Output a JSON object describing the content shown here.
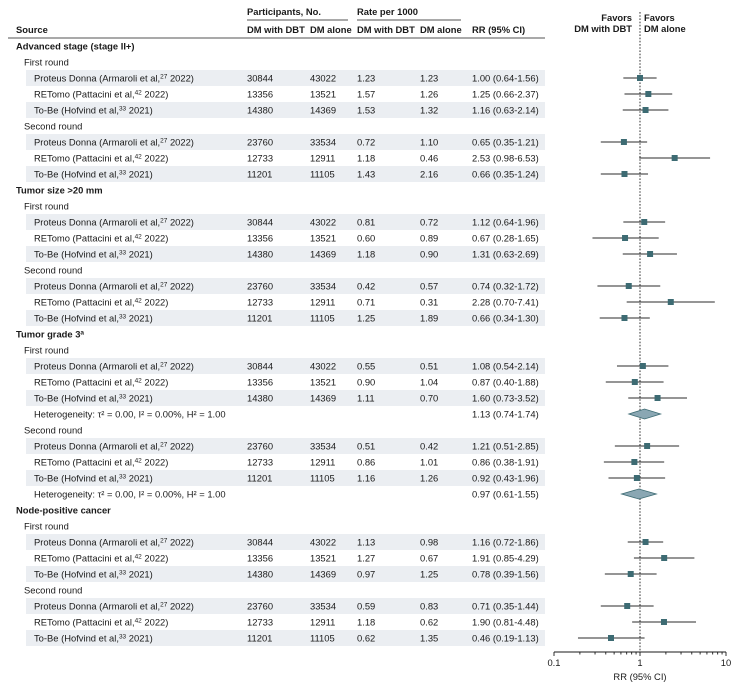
{
  "headers": {
    "source": "Source",
    "participants": "Participants, No.",
    "rate": "Rate per 1000",
    "dm_dbt": "DM with DBT",
    "dm_alone": "DM alone",
    "rr": "RR (95% CI)",
    "favors_left": [
      "Favors",
      "DM with DBT"
    ],
    "favors_right": [
      "Favors",
      "DM alone"
    ]
  },
  "axis": {
    "label": "RR (95% CI)",
    "ticks": [
      "0.1",
      "1",
      "10"
    ],
    "scale": "log",
    "range": [
      0.1,
      10
    ],
    "reference_line": 1
  },
  "colors": {
    "stripe": "#ebeef2",
    "marker": "#3d6b73",
    "diamond": "#8aa7b3"
  },
  "rows": [
    {
      "kind": "section",
      "text": "Advanced stage (stage II+)"
    },
    {
      "kind": "sub",
      "text": "First round"
    },
    {
      "kind": "study",
      "label": "Proteus Donna (Armaroli et al,",
      "ref": "27",
      "year": "2022)",
      "n1": "30844",
      "n2": "43022",
      "r1": "1.23",
      "r2": "1.23",
      "rr": "1.00 (0.64-1.56)",
      "est": 1.0,
      "lo": 0.64,
      "hi": 1.56
    },
    {
      "kind": "study",
      "label": "RETomo (Pattacini et al,",
      "ref": "42",
      "year": "2022)",
      "n1": "13356",
      "n2": "13521",
      "r1": "1.57",
      "r2": "1.26",
      "rr": "1.25 (0.66-2.37)",
      "est": 1.25,
      "lo": 0.66,
      "hi": 2.37
    },
    {
      "kind": "study",
      "label": "To-Be (Hofvind et al,",
      "ref": "33",
      "year": "2021)",
      "n1": "14380",
      "n2": "14369",
      "r1": "1.53",
      "r2": "1.32",
      "rr": "1.16 (0.63-2.14)",
      "est": 1.16,
      "lo": 0.63,
      "hi": 2.14
    },
    {
      "kind": "sub",
      "text": "Second round"
    },
    {
      "kind": "study",
      "label": "Proteus Donna (Armaroli et al,",
      "ref": "27",
      "year": "2022)",
      "n1": "23760",
      "n2": "33534",
      "r1": "0.72",
      "r2": "1.10",
      "rr": "0.65 (0.35-1.21)",
      "est": 0.65,
      "lo": 0.35,
      "hi": 1.21
    },
    {
      "kind": "study",
      "label": "RETomo (Pattacini et al,",
      "ref": "42",
      "year": "2022)",
      "n1": "12733",
      "n2": "12911",
      "r1": "1.18",
      "r2": "0.46",
      "rr": "2.53 (0.98-6.53)",
      "est": 2.53,
      "lo": 0.98,
      "hi": 6.53
    },
    {
      "kind": "study",
      "label": "To-Be (Hofvind et al,",
      "ref": "33",
      "year": "2021)",
      "n1": "11201",
      "n2": "11105",
      "r1": "1.43",
      "r2": "2.16",
      "rr": "0.66 (0.35-1.24)",
      "est": 0.66,
      "lo": 0.35,
      "hi": 1.24
    },
    {
      "kind": "section",
      "text": "Tumor size >20 mm"
    },
    {
      "kind": "sub",
      "text": "First round"
    },
    {
      "kind": "study",
      "label": "Proteus Donna (Armaroli et al,",
      "ref": "27",
      "year": "2022)",
      "n1": "30844",
      "n2": "43022",
      "r1": "0.81",
      "r2": "0.72",
      "rr": "1.12 (0.64-1.96)",
      "est": 1.12,
      "lo": 0.64,
      "hi": 1.96
    },
    {
      "kind": "study",
      "label": "RETomo (Pattacini et al,",
      "ref": "42",
      "year": "2022)",
      "n1": "13356",
      "n2": "13521",
      "r1": "0.60",
      "r2": "0.89",
      "rr": "0.67 (0.28-1.65)",
      "est": 0.67,
      "lo": 0.28,
      "hi": 1.65
    },
    {
      "kind": "study",
      "label": "To-Be (Hofvind et al,",
      "ref": "33",
      "year": "2021)",
      "n1": "14380",
      "n2": "14369",
      "r1": "1.18",
      "r2": "0.90",
      "rr": "1.31 (0.63-2.69)",
      "est": 1.31,
      "lo": 0.63,
      "hi": 2.69
    },
    {
      "kind": "sub",
      "text": "Second round"
    },
    {
      "kind": "study",
      "label": "Proteus Donna (Armaroli et al,",
      "ref": "27",
      "year": "2022)",
      "n1": "23760",
      "n2": "33534",
      "r1": "0.42",
      "r2": "0.57",
      "rr": "0.74 (0.32-1.72)",
      "est": 0.74,
      "lo": 0.32,
      "hi": 1.72
    },
    {
      "kind": "study",
      "label": "RETomo (Pattacini et al,",
      "ref": "42",
      "year": "2022)",
      "n1": "12733",
      "n2": "12911",
      "r1": "0.71",
      "r2": "0.31",
      "rr": "2.28 (0.70-7.41)",
      "est": 2.28,
      "lo": 0.7,
      "hi": 7.41
    },
    {
      "kind": "study",
      "label": "To-Be (Hofvind et al,",
      "ref": "33",
      "year": "2021)",
      "n1": "11201",
      "n2": "11105",
      "r1": "1.25",
      "r2": "1.89",
      "rr": "0.66 (0.34-1.30)",
      "est": 0.66,
      "lo": 0.34,
      "hi": 1.3
    },
    {
      "kind": "section",
      "text": "Tumor grade 3",
      "sup": "a"
    },
    {
      "kind": "sub",
      "text": "First round"
    },
    {
      "kind": "study",
      "label": "Proteus Donna (Armaroli et al,",
      "ref": "27",
      "year": "2022)",
      "n1": "30844",
      "n2": "43022",
      "r1": "0.55",
      "r2": "0.51",
      "rr": "1.08 (0.54-2.14)",
      "est": 1.08,
      "lo": 0.54,
      "hi": 2.14
    },
    {
      "kind": "study",
      "label": "RETomo (Pattacini et al,",
      "ref": "42",
      "year": "2022)",
      "n1": "13356",
      "n2": "13521",
      "r1": "0.90",
      "r2": "1.04",
      "rr": "0.87 (0.40-1.88)",
      "est": 0.87,
      "lo": 0.4,
      "hi": 1.88
    },
    {
      "kind": "study",
      "label": "To-Be (Hofvind et al,",
      "ref": "33",
      "year": "2021)",
      "n1": "14380",
      "n2": "14369",
      "r1": "1.11",
      "r2": "0.70",
      "rr": "1.60 (0.73-3.52)",
      "est": 1.6,
      "lo": 0.73,
      "hi": 3.52
    },
    {
      "kind": "pooled",
      "label": "Heterogeneity: τ² = 0.00, I² = 0.00%, H² = 1.00",
      "rr": "1.13 (0.74-1.74)",
      "est": 1.13,
      "lo": 0.74,
      "hi": 1.74
    },
    {
      "kind": "sub",
      "text": "Second round"
    },
    {
      "kind": "study",
      "label": "Proteus Donna (Armaroli et al,",
      "ref": "27",
      "year": "2022)",
      "n1": "23760",
      "n2": "33534",
      "r1": "0.51",
      "r2": "0.42",
      "rr": "1.21 (0.51-2.85)",
      "est": 1.21,
      "lo": 0.51,
      "hi": 2.85
    },
    {
      "kind": "study",
      "label": "RETomo (Pattacini et al,",
      "ref": "42",
      "year": "2022)",
      "n1": "12733",
      "n2": "12911",
      "r1": "0.86",
      "r2": "1.01",
      "rr": "0.86 (0.38-1.91)",
      "est": 0.86,
      "lo": 0.38,
      "hi": 1.91
    },
    {
      "kind": "study",
      "label": "To-Be (Hofvind et al,",
      "ref": "33",
      "year": "2021)",
      "n1": "11201",
      "n2": "11105",
      "r1": "1.16",
      "r2": "1.26",
      "rr": "0.92 (0.43-1.96)",
      "est": 0.92,
      "lo": 0.43,
      "hi": 1.96
    },
    {
      "kind": "pooled",
      "label": "Heterogeneity: τ² = 0.00, I² = 0.00%, H² = 1.00",
      "rr": "0.97 (0.61-1.55)",
      "est": 0.97,
      "lo": 0.61,
      "hi": 1.55
    },
    {
      "kind": "section",
      "text": "Node-positive cancer"
    },
    {
      "kind": "sub",
      "text": "First round"
    },
    {
      "kind": "study",
      "label": "Proteus Donna (Armaroli et al,",
      "ref": "27",
      "year": "2022)",
      "n1": "30844",
      "n2": "43022",
      "r1": "1.13",
      "r2": "0.98",
      "rr": "1.16 (0.72-1.86)",
      "est": 1.16,
      "lo": 0.72,
      "hi": 1.86
    },
    {
      "kind": "study",
      "label": "RETomo (Pattacini et al,",
      "ref": "42",
      "year": "2022)",
      "n1": "13356",
      "n2": "13521",
      "r1": "1.27",
      "r2": "0.67",
      "rr": "1.91 (0.85-4.29)",
      "est": 1.91,
      "lo": 0.85,
      "hi": 4.29
    },
    {
      "kind": "study",
      "label": "To-Be (Hofvind et al,",
      "ref": "33",
      "year": "2021)",
      "n1": "14380",
      "n2": "14369",
      "r1": "0.97",
      "r2": "1.25",
      "rr": "0.78 (0.39-1.56)",
      "est": 0.78,
      "lo": 0.39,
      "hi": 1.56
    },
    {
      "kind": "sub",
      "text": "Second round"
    },
    {
      "kind": "study",
      "label": "Proteus Donna (Armaroli et al,",
      "ref": "27",
      "year": "2022)",
      "n1": "23760",
      "n2": "33534",
      "r1": "0.59",
      "r2": "0.83",
      "rr": "0.71 (0.35-1.44)",
      "est": 0.71,
      "lo": 0.35,
      "hi": 1.44
    },
    {
      "kind": "study",
      "label": "RETomo (Pattacini et al,",
      "ref": "42",
      "year": "2022)",
      "n1": "12733",
      "n2": "12911",
      "r1": "1.18",
      "r2": "0.62",
      "rr": "1.90 (0.81-4.48)",
      "est": 1.9,
      "lo": 0.81,
      "hi": 4.48
    },
    {
      "kind": "study",
      "label": "To-Be (Hofvind et al,",
      "ref": "33",
      "year": "2021)",
      "n1": "11201",
      "n2": "11105",
      "r1": "0.62",
      "r2": "1.35",
      "rr": "0.46 (0.19-1.13)",
      "est": 0.46,
      "lo": 0.19,
      "hi": 1.13
    }
  ],
  "chart_data": {
    "type": "forest",
    "title": "",
    "xlabel": "RR (95% CI)",
    "ylabel": "",
    "xscale": "log",
    "xlim": [
      0.1,
      10
    ],
    "reference": 1,
    "groups": [
      {
        "name": "Advanced stage (stage II+)",
        "rounds": [
          {
            "round": "First round",
            "studies": [
              {
                "study": "Proteus Donna (Armaroli et al, 2022)",
                "rr": 1.0,
                "lo": 0.64,
                "hi": 1.56
              },
              {
                "study": "RETomo (Pattacini et al, 2022)",
                "rr": 1.25,
                "lo": 0.66,
                "hi": 2.37
              },
              {
                "study": "To-Be (Hofvind et al, 2021)",
                "rr": 1.16,
                "lo": 0.63,
                "hi": 2.14
              }
            ]
          },
          {
            "round": "Second round",
            "studies": [
              {
                "study": "Proteus Donna (Armaroli et al, 2022)",
                "rr": 0.65,
                "lo": 0.35,
                "hi": 1.21
              },
              {
                "study": "RETomo (Pattacini et al, 2022)",
                "rr": 2.53,
                "lo": 0.98,
                "hi": 6.53
              },
              {
                "study": "To-Be (Hofvind et al, 2021)",
                "rr": 0.66,
                "lo": 0.35,
                "hi": 1.24
              }
            ]
          }
        ]
      },
      {
        "name": "Tumor size >20 mm",
        "rounds": [
          {
            "round": "First round",
            "studies": [
              {
                "study": "Proteus Donna (Armaroli et al, 2022)",
                "rr": 1.12,
                "lo": 0.64,
                "hi": 1.96
              },
              {
                "study": "RETomo (Pattacini et al, 2022)",
                "rr": 0.67,
                "lo": 0.28,
                "hi": 1.65
              },
              {
                "study": "To-Be (Hofvind et al, 2021)",
                "rr": 1.31,
                "lo": 0.63,
                "hi": 2.69
              }
            ]
          },
          {
            "round": "Second round",
            "studies": [
              {
                "study": "Proteus Donna (Armaroli et al, 2022)",
                "rr": 0.74,
                "lo": 0.32,
                "hi": 1.72
              },
              {
                "study": "RETomo (Pattacini et al, 2022)",
                "rr": 2.28,
                "lo": 0.7,
                "hi": 7.41
              },
              {
                "study": "To-Be (Hofvind et al, 2021)",
                "rr": 0.66,
                "lo": 0.34,
                "hi": 1.3
              }
            ]
          }
        ]
      },
      {
        "name": "Tumor grade 3",
        "rounds": [
          {
            "round": "First round",
            "studies": [
              {
                "study": "Proteus Donna (Armaroli et al, 2022)",
                "rr": 1.08,
                "lo": 0.54,
                "hi": 2.14
              },
              {
                "study": "RETomo (Pattacini et al, 2022)",
                "rr": 0.87,
                "lo": 0.4,
                "hi": 1.88
              },
              {
                "study": "To-Be (Hofvind et al, 2021)",
                "rr": 1.6,
                "lo": 0.73,
                "hi": 3.52
              }
            ],
            "pooled": {
              "rr": 1.13,
              "lo": 0.74,
              "hi": 1.74
            }
          },
          {
            "round": "Second round",
            "studies": [
              {
                "study": "Proteus Donna (Armaroli et al, 2022)",
                "rr": 1.21,
                "lo": 0.51,
                "hi": 2.85
              },
              {
                "study": "RETomo (Pattacini et al, 2022)",
                "rr": 0.86,
                "lo": 0.38,
                "hi": 1.91
              },
              {
                "study": "To-Be (Hofvind et al, 2021)",
                "rr": 0.92,
                "lo": 0.43,
                "hi": 1.96
              }
            ],
            "pooled": {
              "rr": 0.97,
              "lo": 0.61,
              "hi": 1.55
            }
          }
        ]
      },
      {
        "name": "Node-positive cancer",
        "rounds": [
          {
            "round": "First round",
            "studies": [
              {
                "study": "Proteus Donna (Armaroli et al, 2022)",
                "rr": 1.16,
                "lo": 0.72,
                "hi": 1.86
              },
              {
                "study": "RETomo (Pattacini et al, 2022)",
                "rr": 1.91,
                "lo": 0.85,
                "hi": 4.29
              },
              {
                "study": "To-Be (Hofvind et al, 2021)",
                "rr": 0.78,
                "lo": 0.39,
                "hi": 1.56
              }
            ]
          },
          {
            "round": "Second round",
            "studies": [
              {
                "study": "Proteus Donna (Armaroli et al, 2022)",
                "rr": 0.71,
                "lo": 0.35,
                "hi": 1.44
              },
              {
                "study": "RETomo (Pattacini et al, 2022)",
                "rr": 1.9,
                "lo": 0.81,
                "hi": 4.48
              },
              {
                "study": "To-Be (Hofvind et al, 2021)",
                "rr": 0.46,
                "lo": 0.19,
                "hi": 1.13
              }
            ]
          }
        ]
      }
    ]
  }
}
